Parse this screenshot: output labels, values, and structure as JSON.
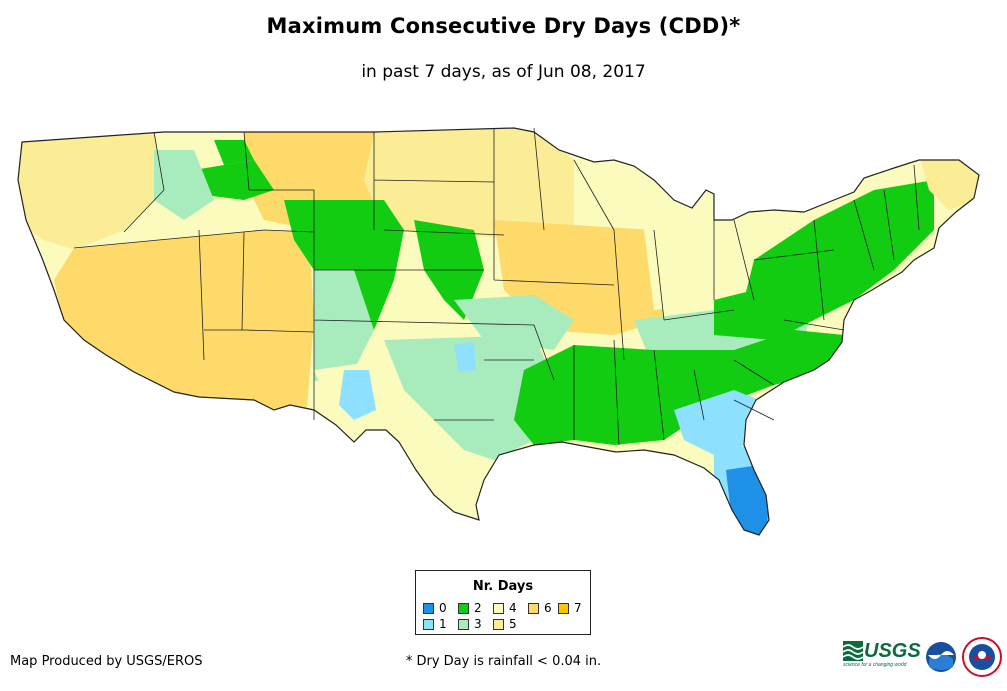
{
  "title": "Maximum Consecutive Dry Days (CDD)*",
  "subtitle": "in past 7 days, as of Jun 08, 2017",
  "legend": {
    "title": "Nr. Days",
    "items": [
      {
        "label": "0",
        "color": "#1e90e8"
      },
      {
        "label": "1",
        "color": "#8ee0ff"
      },
      {
        "label": "2",
        "color": "#11cc11"
      },
      {
        "label": "3",
        "color": "#a8ecbe"
      },
      {
        "label": "4",
        "color": "#fbfbbe"
      },
      {
        "label": "5",
        "color": "#fbec96"
      },
      {
        "label": "6",
        "color": "#fdda6a"
      },
      {
        "label": "7",
        "color": "#ffc400"
      }
    ]
  },
  "credit": "Map Produced by USGS/EROS",
  "footnote": "* Dry Day is rainfall < 0.04 in.",
  "logos": {
    "usgs": "USGS",
    "usgs_tagline": "science for a changing world",
    "noaa": "noaa",
    "nws": "NATIONAL WEATHER SERVICE"
  },
  "map": {
    "regions": [
      {
        "name": "pacific-northwest",
        "days": "5"
      },
      {
        "name": "great-basin-southwest",
        "days": "6"
      },
      {
        "name": "northern-plains",
        "days": "6"
      },
      {
        "name": "rockies",
        "days": "2"
      },
      {
        "name": "southern-plains",
        "days": "3"
      },
      {
        "name": "midwest",
        "days": "5"
      },
      {
        "name": "great-lakes",
        "days": "4"
      },
      {
        "name": "southeast",
        "days": "2"
      },
      {
        "name": "georgia-carolinas-coast",
        "days": "1"
      },
      {
        "name": "florida",
        "days": "0"
      },
      {
        "name": "northeast",
        "days": "2"
      },
      {
        "name": "maine",
        "days": "5"
      }
    ]
  }
}
